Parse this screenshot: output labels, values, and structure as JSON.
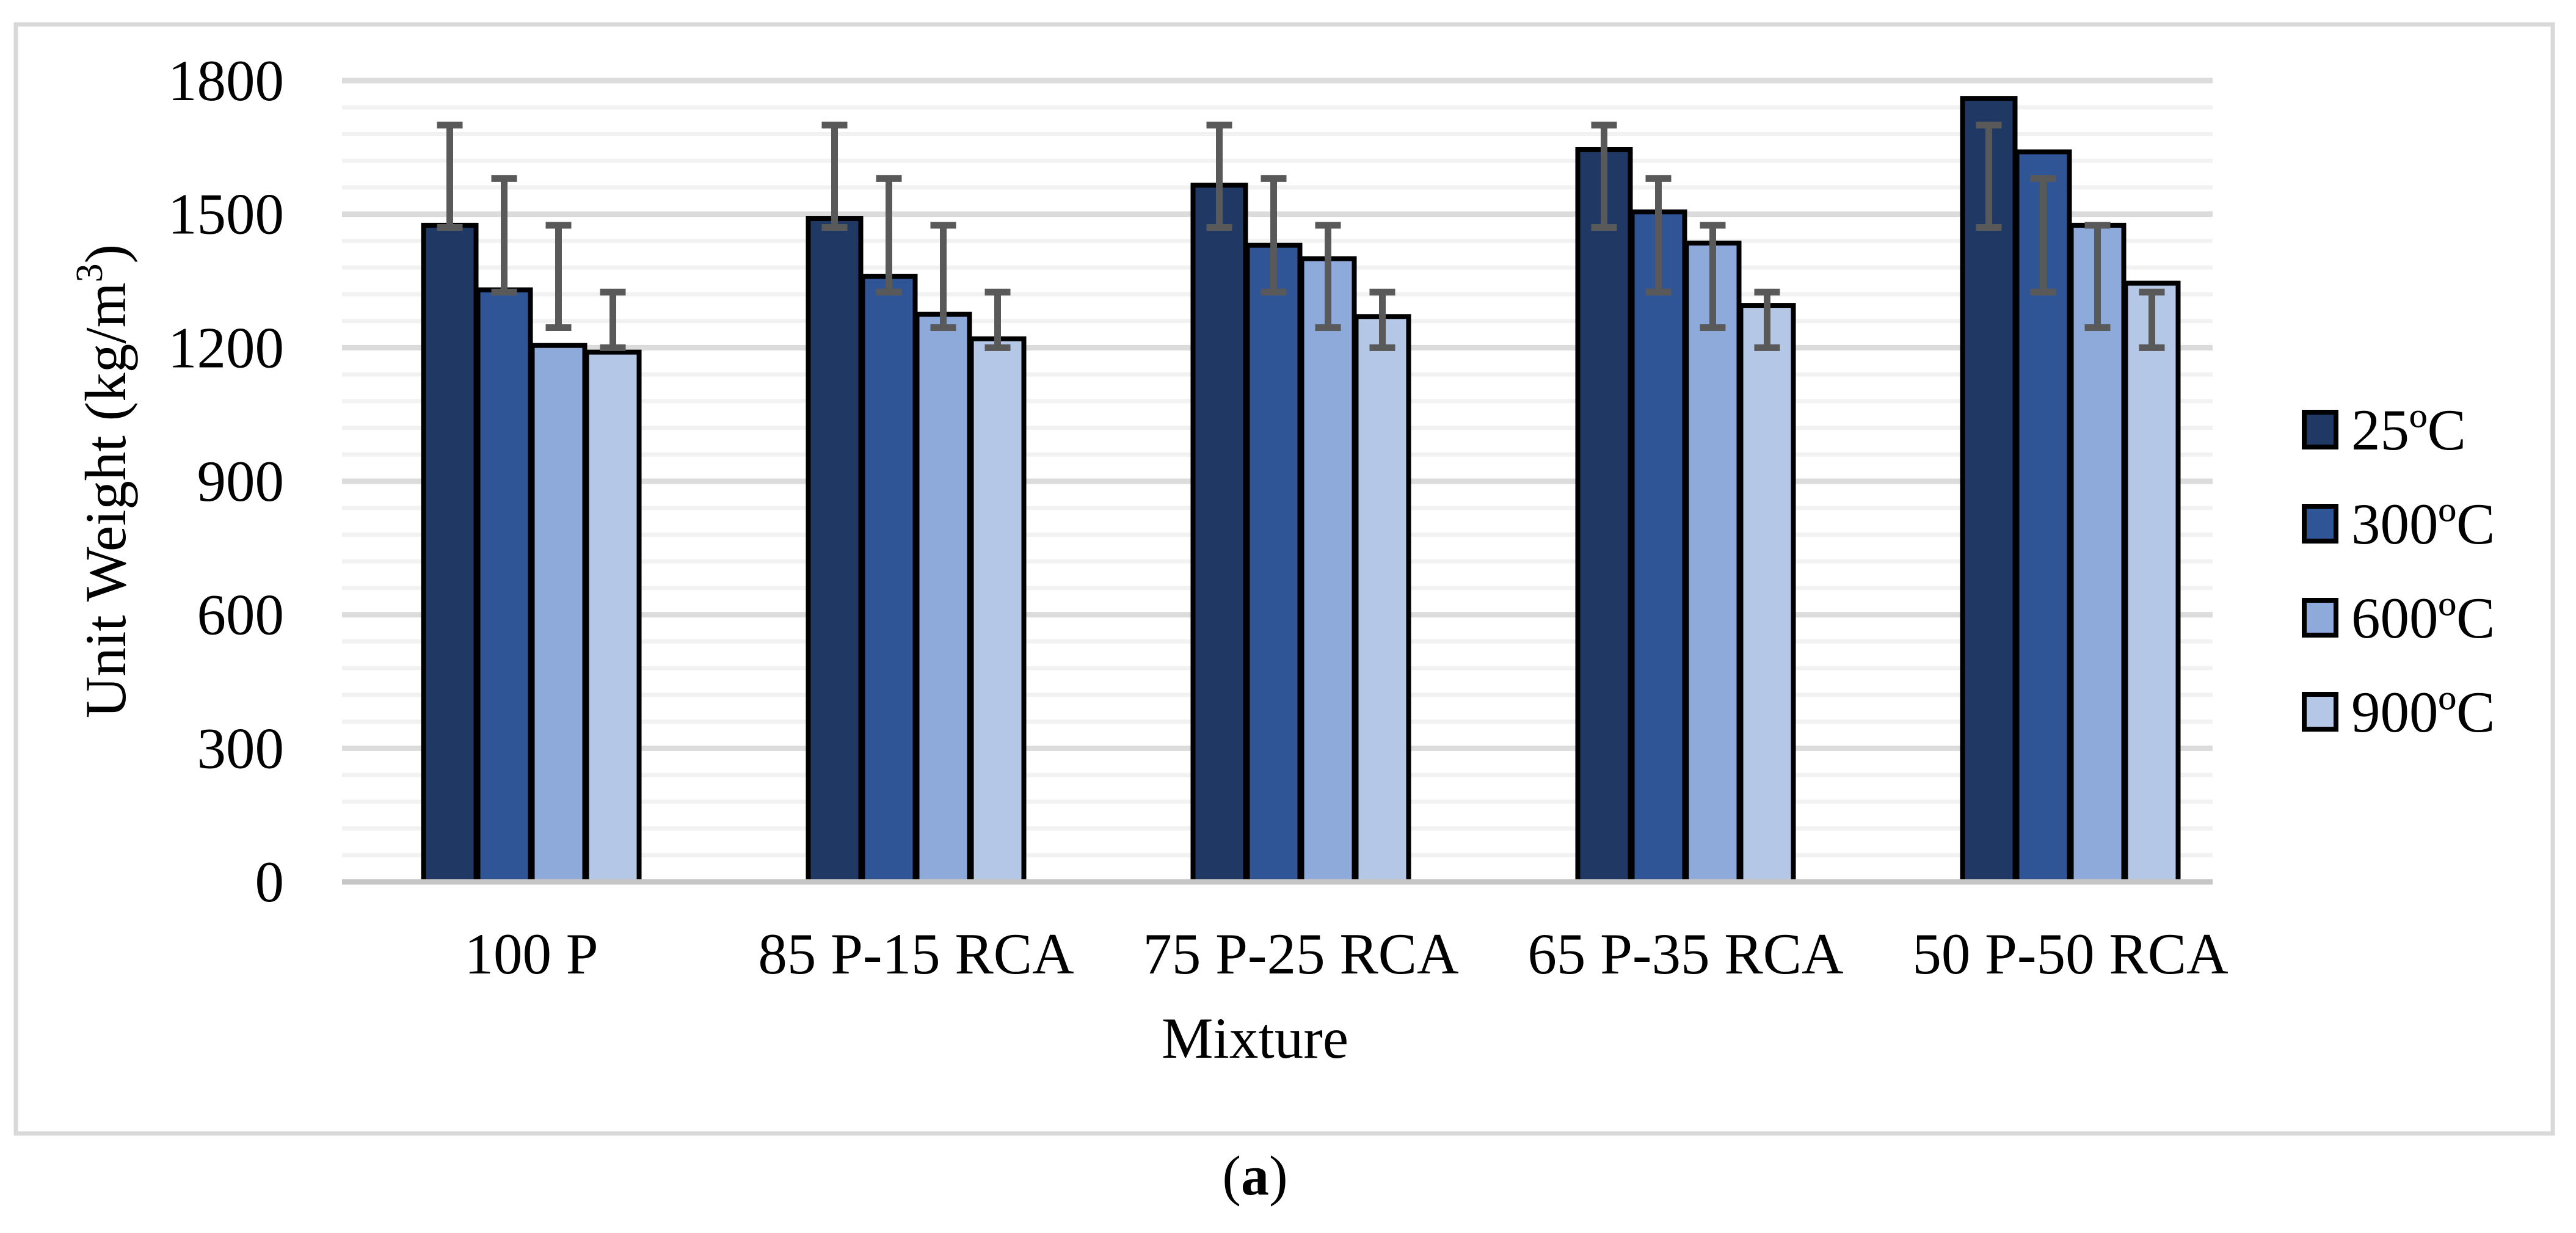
{
  "figure": {
    "caption": {
      "open": "(",
      "letter": "a",
      "close": ")"
    }
  },
  "chart_data": {
    "type": "bar",
    "title": "",
    "xlabel": "Mixture",
    "ylabel": "Unit Weight (kg/m³)",
    "ylabel_main": "Unit Weight (kg/m",
    "ylabel_sup": "3",
    "ylabel_close": ")",
    "categories": [
      "100 P",
      "85 P-15 RCA",
      "75 P-25 RCA",
      "65 P-35 RCA",
      "50 P-50 RCA"
    ],
    "series": [
      {
        "name": "25ºC",
        "color": "#1F3864",
        "values": [
          1475,
          1490,
          1565,
          1645,
          1760
        ],
        "error_low": 1470,
        "error_high": 1700
      },
      {
        "name": "300ºC",
        "color": "#2F5597",
        "values": [
          1330,
          1360,
          1430,
          1505,
          1640
        ],
        "error_low": 1325,
        "error_high": 1580
      },
      {
        "name": "600ºC",
        "color": "#8EAADB",
        "values": [
          1205,
          1275,
          1400,
          1435,
          1475
        ],
        "error_low": 1245,
        "error_high": 1475
      },
      {
        "name": "900ºC",
        "color": "#B4C7E7",
        "values": [
          1190,
          1220,
          1270,
          1295,
          1345
        ],
        "error_low": 1200,
        "error_high": 1325
      }
    ],
    "ylim": [
      0,
      1800
    ],
    "y_major_step": 300,
    "y_minor_step": 60,
    "y_ticks": [
      "0",
      "300",
      "600",
      "900",
      "1200",
      "1500",
      "1800"
    ],
    "grid": true,
    "legend_position": "right",
    "colors": {
      "bar_outline": "#000000",
      "error_bar": "#595959",
      "axis_line": "#c6c6c6",
      "grid_major": "#dcdcdc",
      "grid_minor": "#f2f2f2",
      "figure_border": "#d9d9d9",
      "text": "#000000",
      "background": "#ffffff"
    }
  }
}
